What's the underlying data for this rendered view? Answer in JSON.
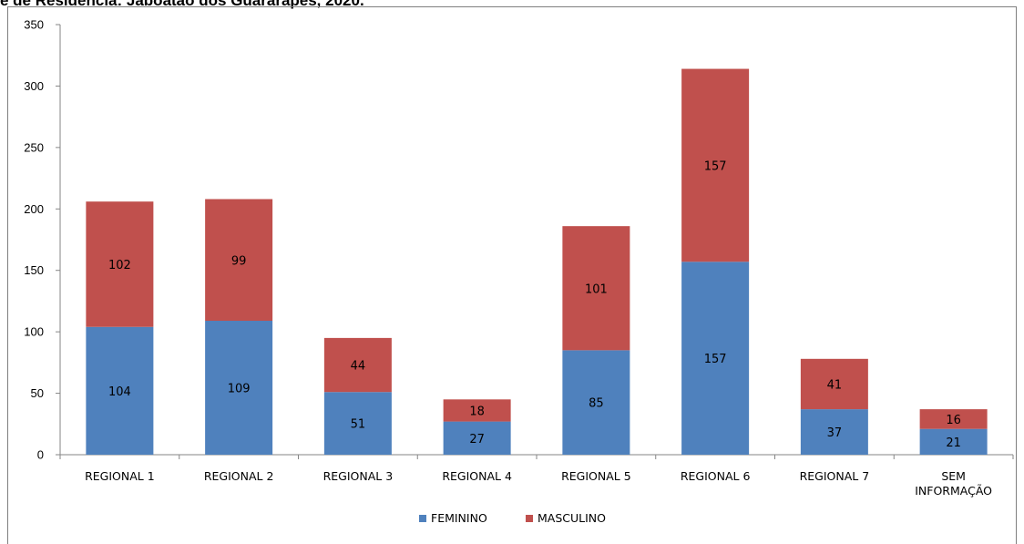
{
  "chart_data": {
    "type": "bar",
    "stacked": true,
    "title": "e de Residência: Jaboatão dos Guararapes, 2020.",
    "xlabel": "",
    "ylabel": "",
    "ylim": [
      0,
      350
    ],
    "yticks": [
      0,
      50,
      100,
      150,
      200,
      250,
      300,
      350
    ],
    "grid": false,
    "legend_position": "bottom",
    "categories": [
      [
        "REGIONAL 1"
      ],
      [
        "REGIONAL 2"
      ],
      [
        "REGIONAL 3"
      ],
      [
        "REGIONAL 4"
      ],
      [
        "REGIONAL 5"
      ],
      [
        "REGIONAL 6"
      ],
      [
        "REGIONAL 7"
      ],
      [
        "SEM",
        "INFORMAÇÃO"
      ]
    ],
    "series": [
      {
        "name": "FEMININO",
        "color": "#4f81bd",
        "values": [
          104,
          109,
          51,
          27,
          85,
          157,
          37,
          21
        ]
      },
      {
        "name": "MASCULINO",
        "color": "#c0504d",
        "values": [
          102,
          99,
          44,
          18,
          101,
          157,
          41,
          16
        ]
      }
    ]
  }
}
